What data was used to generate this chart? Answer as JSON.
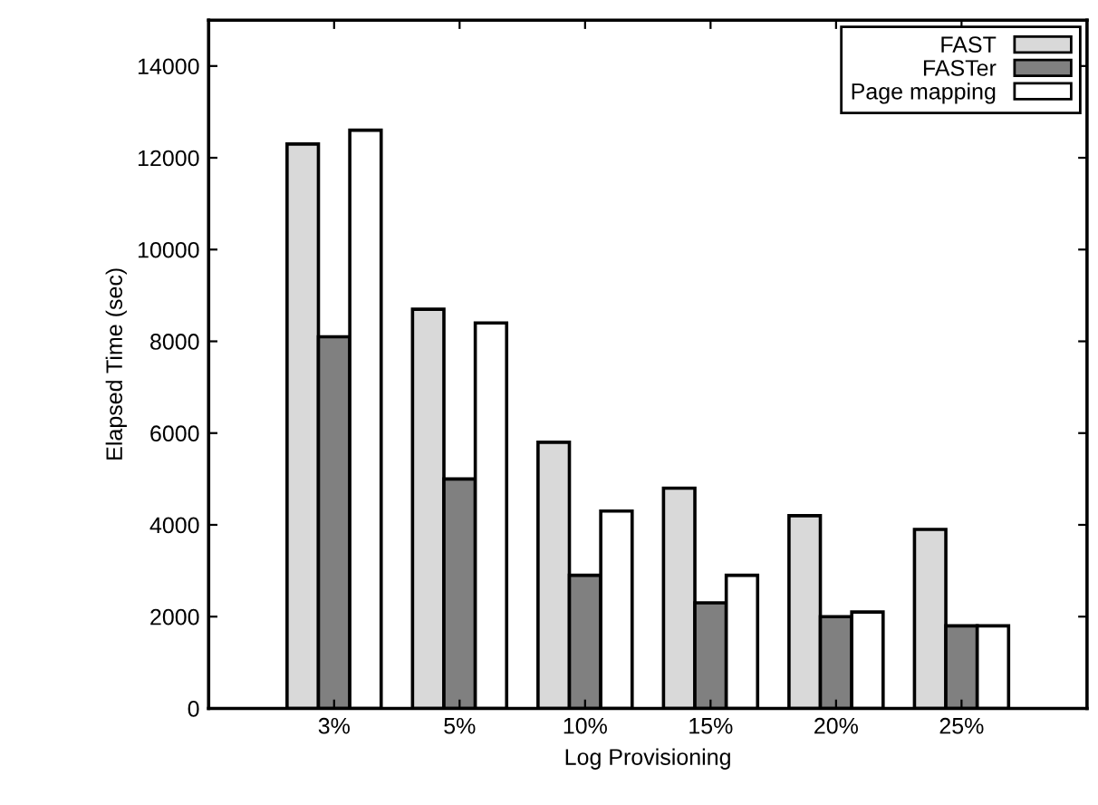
{
  "chart_data": {
    "type": "bar",
    "xlabel": "Log Provisioning",
    "ylabel": "Elapsed Time (sec)",
    "categories": [
      "3%",
      "5%",
      "10%",
      "15%",
      "20%",
      "25%"
    ],
    "series": [
      {
        "name": "FAST",
        "color": "#d9d9d9",
        "values": [
          12300,
          8700,
          5800,
          4800,
          4200,
          3900
        ]
      },
      {
        "name": "FASTer",
        "color": "#808080",
        "values": [
          8100,
          5000,
          2900,
          2300,
          2000,
          1800
        ]
      },
      {
        "name": "Page mapping",
        "color": "#ffffff",
        "values": [
          12600,
          8400,
          4300,
          2900,
          2100,
          1800
        ]
      }
    ],
    "ylim": [
      0,
      15000
    ],
    "yticks": [
      0,
      2000,
      4000,
      6000,
      8000,
      10000,
      12000,
      14000
    ],
    "grid": false,
    "legend": "top right"
  }
}
